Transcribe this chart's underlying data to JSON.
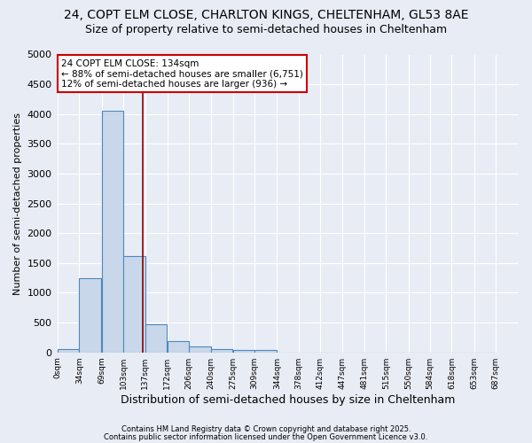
{
  "title": "24, COPT ELM CLOSE, CHARLTON KINGS, CHELTENHAM, GL53 8AE",
  "subtitle": "Size of property relative to semi-detached houses in Cheltenham",
  "xlabel": "Distribution of semi-detached houses by size in Cheltenham",
  "ylabel": "Number of semi-detached properties",
  "bins": [
    0,
    34,
    69,
    103,
    137,
    172,
    206,
    240,
    275,
    309,
    344,
    378,
    412,
    447,
    481,
    515,
    550,
    584,
    618,
    653,
    687
  ],
  "bar_heights": [
    50,
    1250,
    4050,
    1620,
    470,
    195,
    105,
    60,
    45,
    35,
    0,
    0,
    0,
    0,
    0,
    0,
    0,
    0,
    0,
    0
  ],
  "bar_color": "#c8d8ea",
  "bar_edge_color": "#4d88bb",
  "background_color": "#e8ecf5",
  "grid_color": "#d0d8e8",
  "vline_x": 134,
  "vline_color": "#8b0000",
  "annotation_line1": "24 COPT ELM CLOSE: 134sqm",
  "annotation_line2": "← 88% of semi-detached houses are smaller (6,751)",
  "annotation_line3": "12% of semi-detached houses are larger (936) →",
  "annotation_box_color": "#cc0000",
  "ylim": [
    0,
    5000
  ],
  "yticks": [
    0,
    500,
    1000,
    1500,
    2000,
    2500,
    3000,
    3500,
    4000,
    4500,
    5000
  ],
  "footer1": "Contains HM Land Registry data © Crown copyright and database right 2025.",
  "footer2": "Contains public sector information licensed under the Open Government Licence v3.0.",
  "title_fontsize": 10,
  "subtitle_fontsize": 9,
  "ylabel_fontsize": 8,
  "xlabel_fontsize": 9
}
